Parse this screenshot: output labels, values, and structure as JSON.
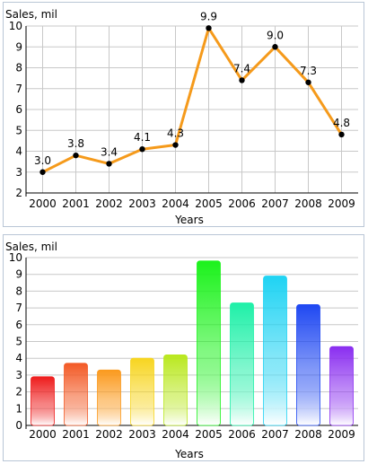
{
  "chart_data": [
    {
      "type": "line",
      "ylabel": "Sales, mil",
      "xlabel": "Years",
      "categories": [
        "2000",
        "2001",
        "2002",
        "2003",
        "2004",
        "2005",
        "2006",
        "2007",
        "2008",
        "2009"
      ],
      "values": [
        3.0,
        3.8,
        3.4,
        4.1,
        4.3,
        9.9,
        7.4,
        9.0,
        7.3,
        4.8
      ],
      "data_labels": [
        "3.0",
        "3.8",
        "3.4",
        "4.1",
        "4.3",
        "9.9",
        "7.4",
        "9.0",
        "7.3",
        "4.8"
      ],
      "ylim": [
        2,
        10
      ],
      "yticks": [
        "2",
        "3",
        "4",
        "5",
        "6",
        "7",
        "8",
        "9",
        "10"
      ],
      "grid": true,
      "colors": {
        "line": "#f59a1b",
        "marker": "#000000"
      }
    },
    {
      "type": "bar",
      "ylabel": "Sales, mil",
      "xlabel": "Years",
      "categories": [
        "2000",
        "2001",
        "2002",
        "2003",
        "2004",
        "2005",
        "2006",
        "2007",
        "2008",
        "2009"
      ],
      "values": [
        2.9,
        3.7,
        3.3,
        4.0,
        4.2,
        9.8,
        7.3,
        8.9,
        7.2,
        4.7
      ],
      "ylim": [
        0,
        10
      ],
      "yticks": [
        "0",
        "1",
        "2",
        "3",
        "4",
        "5",
        "6",
        "7",
        "8",
        "9",
        "10"
      ],
      "grid": true,
      "colors": [
        "#ee1c1c",
        "#f35a26",
        "#fb9a1e",
        "#f7d520",
        "#b9e81e",
        "#1cf21c",
        "#1ff0a8",
        "#1fd3f3",
        "#1f48f2",
        "#8a2ef0"
      ]
    }
  ]
}
